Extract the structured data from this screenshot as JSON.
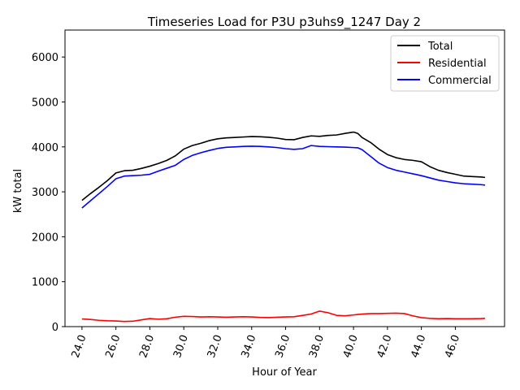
{
  "chart_data": {
    "type": "line",
    "title": "Timeseries Load for P3U p3uhs9_1247  Day 2",
    "xlabel": "Hour of Year",
    "ylabel": "kW total",
    "xlim": [
      23.0,
      48.9
    ],
    "ylim": [
      0,
      6600
    ],
    "xticks": [
      24,
      26,
      28,
      30,
      32,
      34,
      36,
      38,
      40,
      42,
      44,
      46
    ],
    "xtick_labels": [
      "24.0",
      "26.0",
      "28.0",
      "30.0",
      "32.0",
      "34.0",
      "36.0",
      "38.0",
      "40.0",
      "42.0",
      "44.0",
      "46.0"
    ],
    "yticks": [
      0,
      1000,
      2000,
      3000,
      4000,
      5000,
      6000
    ],
    "ytick_labels": [
      "0",
      "1000",
      "2000",
      "3000",
      "4000",
      "5000",
      "6000"
    ],
    "legend_position": "top-right",
    "x": [
      24.0,
      24.5,
      25.0,
      25.5,
      26.0,
      26.5,
      27.0,
      27.5,
      28.0,
      28.5,
      29.0,
      29.5,
      30.0,
      30.5,
      31.0,
      31.5,
      32.0,
      32.5,
      33.0,
      33.5,
      34.0,
      34.5,
      35.0,
      35.5,
      36.0,
      36.5,
      37.0,
      37.5,
      38.0,
      38.5,
      39.0,
      39.5,
      40.0,
      40.25,
      40.5,
      41.0,
      41.5,
      42.0,
      42.5,
      43.0,
      43.5,
      44.0,
      44.5,
      45.0,
      45.5,
      46.0,
      46.5,
      47.0,
      47.5,
      47.75
    ],
    "series": [
      {
        "name": "Total",
        "color": "#000000",
        "values": [
          2810,
          2960,
          3100,
          3250,
          3420,
          3470,
          3480,
          3520,
          3570,
          3630,
          3700,
          3800,
          3950,
          4030,
          4080,
          4140,
          4180,
          4200,
          4210,
          4220,
          4230,
          4225,
          4215,
          4195,
          4165,
          4160,
          4210,
          4245,
          4235,
          4255,
          4265,
          4300,
          4330,
          4300,
          4210,
          4100,
          3950,
          3830,
          3760,
          3720,
          3700,
          3670,
          3560,
          3480,
          3430,
          3390,
          3350,
          3340,
          3330,
          3320
        ]
      },
      {
        "name": "Residential",
        "color": "#ff0000",
        "values": [
          170,
          160,
          140,
          130,
          125,
          115,
          120,
          150,
          180,
          165,
          175,
          210,
          230,
          225,
          215,
          220,
          215,
          210,
          215,
          220,
          215,
          205,
          200,
          210,
          215,
          220,
          250,
          280,
          345,
          310,
          250,
          240,
          260,
          270,
          280,
          290,
          290,
          295,
          300,
          290,
          240,
          200,
          185,
          175,
          180,
          175,
          175,
          175,
          180,
          185
        ]
      },
      {
        "name": "Commercial",
        "color": "#0000ff",
        "values": [
          2640,
          2800,
          2960,
          3120,
          3290,
          3350,
          3360,
          3370,
          3390,
          3460,
          3525,
          3590,
          3720,
          3810,
          3870,
          3920,
          3965,
          3990,
          4000,
          4010,
          4015,
          4010,
          4000,
          3985,
          3960,
          3945,
          3960,
          4030,
          4010,
          4005,
          4000,
          3995,
          3985,
          3980,
          3940,
          3790,
          3640,
          3540,
          3480,
          3440,
          3400,
          3360,
          3310,
          3260,
          3230,
          3200,
          3180,
          3170,
          3160,
          3150
        ]
      }
    ]
  }
}
